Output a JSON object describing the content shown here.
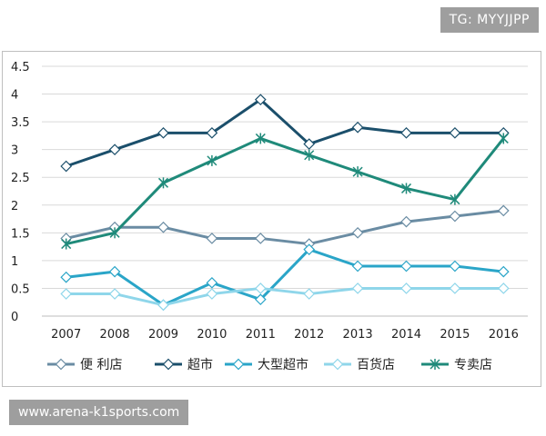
{
  "watermarks": {
    "top_right": "TG: MYYJJPP",
    "bottom_left": "www.arena-k1sports.com"
  },
  "chart_data": {
    "type": "line",
    "title": "",
    "xlabel": "",
    "ylabel": "",
    "categories": [
      "2007",
      "2008",
      "2009",
      "2010",
      "2011",
      "2012",
      "2013",
      "2014",
      "2015",
      "2016"
    ],
    "ylim": [
      0,
      4.5
    ],
    "yticks": [
      "0",
      "0.5",
      "1",
      "1.5",
      "2",
      "2.5",
      "3",
      "3.5",
      "4",
      "4.5"
    ],
    "grid": true,
    "legend_position": "bottom",
    "series": [
      {
        "name": "便 利店",
        "color": "#6a8ca3",
        "marker": "diamond",
        "values": [
          1.4,
          1.6,
          1.6,
          1.4,
          1.4,
          1.3,
          1.5,
          1.7,
          1.8,
          1.9
        ]
      },
      {
        "name": "超市",
        "color": "#1b4f6b",
        "marker": "diamond",
        "values": [
          2.7,
          3.0,
          3.3,
          3.3,
          3.9,
          3.1,
          3.4,
          3.3,
          3.3,
          3.3
        ]
      },
      {
        "name": "大型超市",
        "color": "#2aa5c8",
        "marker": "diamond",
        "values": [
          0.7,
          0.8,
          0.2,
          0.6,
          0.3,
          1.2,
          0.9,
          0.9,
          0.9,
          0.8
        ]
      },
      {
        "name": "百货店",
        "color": "#8fd6ea",
        "marker": "diamond",
        "values": [
          0.4,
          0.4,
          0.2,
          0.4,
          0.5,
          0.4,
          0.5,
          0.5,
          0.5,
          0.5
        ]
      },
      {
        "name": "专卖店",
        "color": "#1f8a7a",
        "marker": "asterisk",
        "values": [
          1.3,
          1.5,
          2.4,
          2.8,
          3.2,
          2.9,
          2.6,
          2.3,
          2.1,
          3.2
        ]
      }
    ]
  }
}
